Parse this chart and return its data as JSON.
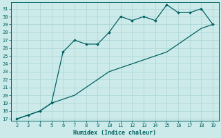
{
  "xlabel": "Humidex (Indice chaleur)",
  "ylabel": "",
  "x_data": [
    2,
    3,
    4,
    5,
    6,
    7,
    8,
    9,
    10,
    11,
    12,
    13,
    14,
    15,
    16,
    17,
    18,
    19
  ],
  "y_main": [
    17,
    17.5,
    18,
    19,
    25.5,
    27,
    26.5,
    26.5,
    28,
    30,
    29.5,
    30,
    29.5,
    31.5,
    30.5,
    30.5,
    31,
    29
  ],
  "y_ref": [
    17,
    17.5,
    18,
    19,
    19.5,
    20,
    21,
    22,
    23,
    23.5,
    24,
    24.5,
    25,
    25.5,
    26.5,
    27.5,
    28.5,
    29
  ],
  "line_color": "#006060",
  "bg_color": "#cceaea",
  "grid_color": "#aad4d4",
  "ylim_min": 16.8,
  "ylim_max": 31.8,
  "xlim_min": 1.5,
  "xlim_max": 19.5,
  "yticks": [
    17,
    18,
    19,
    20,
    21,
    22,
    23,
    24,
    25,
    26,
    27,
    28,
    29,
    30,
    31
  ],
  "xticks": [
    2,
    3,
    4,
    5,
    6,
    7,
    8,
    9,
    10,
    11,
    12,
    13,
    14,
    15,
    16,
    17,
    18,
    19
  ],
  "marker": "D",
  "markersize": 1.8,
  "linewidth": 0.9,
  "tick_fontsize": 5.0,
  "xlabel_fontsize": 6.0
}
